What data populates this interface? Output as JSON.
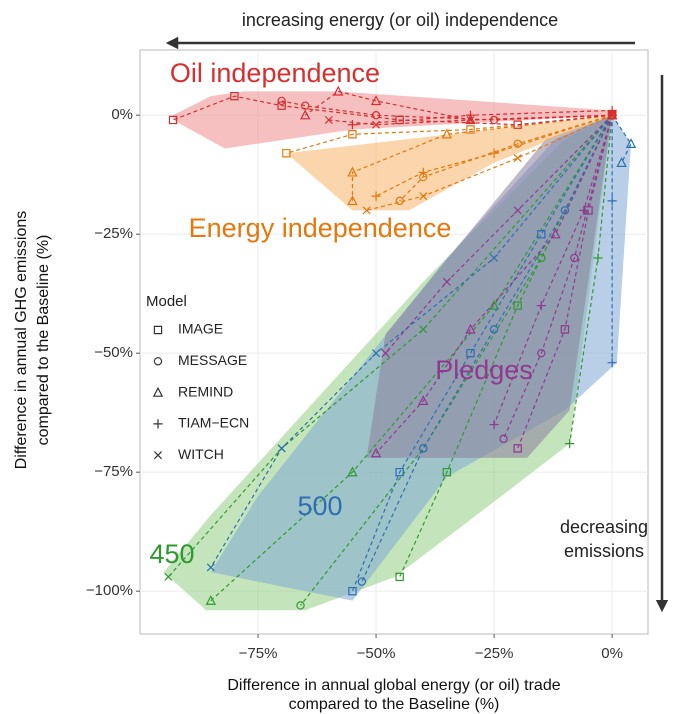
{
  "chart_data": {
    "type": "scatter",
    "top_annotation": "increasing energy (or oil) independence",
    "right_annotation": [
      "decreasing",
      "emissions"
    ],
    "xlabel": [
      "Difference in annual global energy (or oil) trade",
      "compared to the Baseline (%)"
    ],
    "ylabel": [
      "Difference in annual GHG emissions",
      "compared to the Baseline (%)"
    ],
    "xlim": [
      -100,
      7.6
    ],
    "ylim": [
      -109,
      13.7
    ],
    "xticks": [
      {
        "value": -75,
        "label": "−75%"
      },
      {
        "value": -50,
        "label": "−50%"
      },
      {
        "value": -25,
        "label": "−25%"
      },
      {
        "value": 0,
        "label": "0%"
      }
    ],
    "yticks": [
      {
        "value": 0,
        "label": "0%"
      },
      {
        "value": -25,
        "label": "−25%"
      },
      {
        "value": -50,
        "label": "−50%"
      },
      {
        "value": -75,
        "label": "−75%"
      },
      {
        "value": -100,
        "label": "−100%"
      }
    ],
    "grid": true,
    "legend": {
      "title": "Model",
      "entries": [
        {
          "name": "IMAGE",
          "marker": "square"
        },
        {
          "name": "MESSAGE",
          "marker": "circle"
        },
        {
          "name": "REMIND",
          "marker": "triangle"
        },
        {
          "name": "TIAM−ECN",
          "marker": "plus"
        },
        {
          "name": "WITCH",
          "marker": "cross"
        }
      ]
    },
    "regions": [
      {
        "label": "Oil independence",
        "color": "#d62f2f",
        "fill": "#f08c8c",
        "hull_x": [
          -93,
          -85,
          -78,
          -58,
          0,
          1,
          -55,
          -82,
          -93
        ],
        "hull_y": [
          0,
          4,
          5,
          5,
          1,
          0,
          -3,
          -7,
          -1
        ],
        "trajectories": [
          {
            "marker": "square",
            "x": [
              0,
              -20,
              -45,
              -70,
              -80,
              -93
            ],
            "y": [
              0,
              -2,
              -1,
              2,
              4,
              -1
            ]
          },
          {
            "marker": "circle",
            "x": [
              0,
              -25,
              -50,
              -65,
              -70
            ],
            "y": [
              0,
              -1,
              0,
              2,
              3
            ]
          },
          {
            "marker": "triangle",
            "x": [
              0,
              -30,
              -50,
              -58,
              -65
            ],
            "y": [
              0,
              -1,
              3,
              5,
              0
            ]
          },
          {
            "marker": "plus",
            "x": [
              0,
              -30,
              -55
            ],
            "y": [
              1,
              0,
              -2
            ]
          },
          {
            "marker": "cross",
            "x": [
              0,
              -30,
              -50,
              -60
            ],
            "y": [
              0,
              -1,
              -2,
              -1
            ]
          }
        ]
      },
      {
        "label": "Energy independence",
        "color": "#e6770b",
        "fill": "#f8b46a",
        "hull_x": [
          0,
          -69,
          -55,
          -43,
          -25,
          0
        ],
        "hull_y": [
          0,
          -8,
          -20,
          -20,
          -10,
          0
        ],
        "trajectories": [
          {
            "marker": "square",
            "x": [
              0,
              -30,
              -55,
              -69
            ],
            "y": [
              0,
              -3,
              -4,
              -8
            ]
          },
          {
            "marker": "circle",
            "x": [
              0,
              -20,
              -40,
              -45
            ],
            "y": [
              0,
              -6,
              -13,
              -18
            ]
          },
          {
            "marker": "triangle",
            "x": [
              0,
              -35,
              -55,
              -55
            ],
            "y": [
              0,
              -4,
              -12,
              -18
            ]
          },
          {
            "marker": "plus",
            "x": [
              0,
              -25,
              -40,
              -50
            ],
            "y": [
              0,
              -8,
              -12,
              -17
            ]
          },
          {
            "marker": "cross",
            "x": [
              0,
              -20,
              -40,
              -52
            ],
            "y": [
              0,
              -9,
              -17,
              -20
            ]
          }
        ]
      },
      {
        "label": "Pledges",
        "color": "#8e3a8e",
        "fill": "#8a7f9e",
        "hull_x": [
          0,
          -9,
          -18,
          -52,
          -48,
          -14
        ],
        "hull_y": [
          0,
          -62,
          -72,
          -72,
          -46,
          -5
        ],
        "trajectories": [
          {
            "marker": "square",
            "x": [
              0,
              -5,
              -10,
              -20
            ],
            "y": [
              0,
              -20,
              -45,
              -70
            ]
          },
          {
            "marker": "circle",
            "x": [
              0,
              -8,
              -15,
              -23
            ],
            "y": [
              0,
              -30,
              -50,
              -68
            ]
          },
          {
            "marker": "triangle",
            "x": [
              0,
              -12,
              -30,
              -40,
              -50
            ],
            "y": [
              0,
              -25,
              -45,
              -60,
              -71
            ]
          },
          {
            "marker": "plus",
            "x": [
              0,
              -6,
              -15,
              -25
            ],
            "y": [
              0,
              -20,
              -40,
              -65
            ]
          },
          {
            "marker": "cross",
            "x": [
              0,
              -20,
              -35,
              -48
            ],
            "y": [
              0,
              -20,
              -35,
              -50
            ]
          }
        ]
      },
      {
        "label": "500",
        "color": "#2d6fb0",
        "fill": "#7fa8d4",
        "hull_x": [
          0,
          4,
          1,
          -10,
          -35,
          -55,
          -85,
          -75,
          -35,
          -12
        ],
        "hull_y": [
          0,
          -6,
          -52,
          -62,
          -76,
          -102,
          -96,
          -80,
          -30,
          -5
        ],
        "trajectories": [
          {
            "marker": "square",
            "x": [
              0,
              -15,
              -30,
              -45,
              -55
            ],
            "y": [
              0,
              -25,
              -50,
              -75,
              -100
            ]
          },
          {
            "marker": "circle",
            "x": [
              0,
              -10,
              -25,
              -40,
              -53
            ],
            "y": [
              0,
              -20,
              -45,
              -70,
              -98
            ]
          },
          {
            "marker": "triangle",
            "x": [
              0,
              4,
              2
            ],
            "y": [
              0,
              -6,
              -10
            ]
          },
          {
            "marker": "plus",
            "x": [
              0,
              0,
              0
            ],
            "y": [
              0,
              -18,
              -52
            ]
          },
          {
            "marker": "cross",
            "x": [
              0,
              -25,
              -50,
              -70,
              -85
            ],
            "y": [
              0,
              -30,
              -50,
              -70,
              -95
            ]
          }
        ]
      },
      {
        "label": "450",
        "color": "#2e9a2e",
        "fill": "#93cf84",
        "hull_x": [
          0,
          -9,
          -30,
          -46,
          -65,
          -86,
          -95,
          -85,
          -40,
          -10
        ],
        "hull_y": [
          0,
          -69,
          -85,
          -97,
          -104,
          -104,
          -96,
          -84,
          -35,
          -5
        ],
        "trajectories": [
          {
            "marker": "square",
            "x": [
              0,
              -20,
              -35,
              -45
            ],
            "y": [
              0,
              -40,
              -75,
              -97
            ]
          },
          {
            "marker": "circle",
            "x": [
              0,
              -15,
              -40,
              -66
            ],
            "y": [
              0,
              -30,
              -70,
              -103
            ]
          },
          {
            "marker": "triangle",
            "x": [
              0,
              -25,
              -55,
              -85
            ],
            "y": [
              0,
              -40,
              -75,
              -102
            ]
          },
          {
            "marker": "plus",
            "x": [
              0,
              -3,
              -9
            ],
            "y": [
              0,
              -30,
              -69
            ]
          },
          {
            "marker": "cross",
            "x": [
              0,
              -40,
              -70,
              -94
            ],
            "y": [
              0,
              -45,
              -70,
              -97
            ]
          }
        ]
      }
    ]
  }
}
